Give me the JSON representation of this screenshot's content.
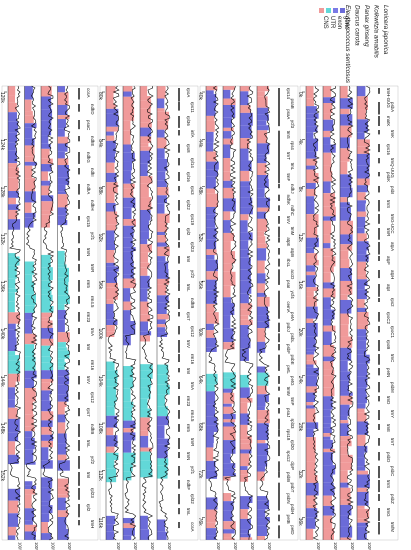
{
  "legend": [
    {
      "label": "gene",
      "color": "#6b6bd8"
    },
    {
      "label": "exon",
      "color": "#7a7ae6"
    },
    {
      "label": "UTR",
      "color": "#62d8d8"
    },
    {
      "label": "CNS",
      "color": "#f09a9a"
    }
  ],
  "species": [
    "Lonicera japonica",
    "Kolkwitzia amabilis",
    "Panax ginseng",
    "Daucus carota",
    "Eleutherococcus senticosus"
  ],
  "colors": {
    "gene": "#6b6bd8",
    "exon": "#7a7ae6",
    "utr": "#62d8d8",
    "cns": "#f09a9a",
    "trace": "#000000"
  },
  "percent_labels": [
    "100%",
    "50%"
  ],
  "panels": [
    {
      "ticks": [
        "0k",
        "4k",
        "8k",
        "12k",
        "16k",
        "20k",
        "24k",
        "28k",
        "32k",
        "36k"
      ],
      "genes": [
        "trnH-GUG",
        "psbA",
        "matK",
        "trnK",
        "rps16",
        "trnQ-UUG",
        "psbK",
        "psbI",
        "trnS",
        "trnG-UCC",
        "trnR",
        "atpA",
        "atpF",
        "atpH",
        "atpI",
        "rps2",
        "rpoC2",
        "rpoC1",
        "rpoB",
        "trnC",
        "petN",
        "psbM",
        "trnD",
        "trnY",
        "trnE",
        "trnT",
        "psbD",
        "psbC",
        "trnS",
        "psbZ",
        "trnG",
        "trnfM"
      ]
    },
    {
      "ticks": [
        "40k",
        "44k",
        "48k",
        "52k",
        "56k",
        "60k",
        "64k",
        "68k",
        "72k",
        "76k"
      ],
      "genes": [
        "rps14",
        "psaB",
        "psaA",
        "ycf3",
        "trnS",
        "rps4",
        "trnT",
        "trnL",
        "trnF",
        "ndhJ",
        "ndhK",
        "ndhC",
        "trnV",
        "trnM",
        "atpE",
        "atpB",
        "rbcL",
        "accD",
        "psaI",
        "ycf4",
        "cemA",
        "petA",
        "psbJ",
        "psbL",
        "psbF",
        "psbE",
        "petL",
        "petG",
        "trnW",
        "trnP",
        "psaJ",
        "rpl33",
        "rps18",
        "rpl20",
        "rps12",
        "clpP",
        "psbB",
        "psbT",
        "psbN",
        "psbH",
        "petB",
        "petD"
      ]
    },
    {
      "ticks": [
        "80k",
        "84k",
        "88k",
        "92k",
        "96k",
        "100k",
        "104k",
        "108k",
        "112k",
        "116k"
      ],
      "genes": [
        "rpoA",
        "rps11",
        "rpl36",
        "infA",
        "rps8",
        "rpl14",
        "rpl16",
        "rps3",
        "rpl22",
        "rps19",
        "rpl2",
        "rpl23",
        "trnI",
        "ycf2",
        "trnL",
        "ndhB",
        "rps7",
        "rps12",
        "trnV",
        "rrn16",
        "trnI",
        "trnA",
        "rrn23",
        "rrn4.5",
        "rrn5",
        "trnR",
        "trnN",
        "ycf1",
        "ndhF",
        "rpl32",
        "trnL",
        "ccsA"
      ]
    },
    {
      "ticks": [
        "120k",
        "124k",
        "128k",
        "132k",
        "136k",
        "140k",
        "144k",
        "148k",
        "152k"
      ],
      "genes": [
        "ccsA",
        "ndhD",
        "psaC",
        "ndhE",
        "ndhG",
        "ndhI",
        "ndhA",
        "ndhH",
        "rps15",
        "ycf1",
        "trnN",
        "trnR",
        "rrn5",
        "rrn4.5",
        "rrn23",
        "trnA",
        "trnI",
        "rrn16",
        "trnV",
        "rps12",
        "rps7",
        "ndhB",
        "trnL",
        "ycf2",
        "trnI",
        "rpl23",
        "rpl2",
        "trnH"
      ]
    }
  ]
}
